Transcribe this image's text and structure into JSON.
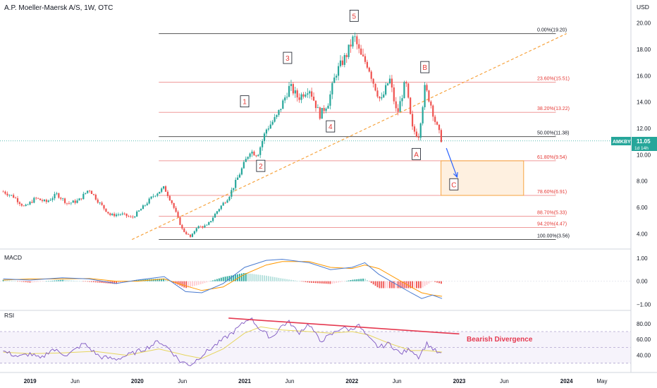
{
  "header": {
    "title": "A.P. Moeller-Maersk A/S, 1W, OTC",
    "currency": "USD",
    "ticker": "AMKBY",
    "last_price": "11.05",
    "countdown": "1d 14h"
  },
  "colors": {
    "up": "#26a69a",
    "down": "#ef5350",
    "fib_line": "#ef9a9a",
    "fib_text": "#e53935",
    "trendline": "#f7a440",
    "wave_label": "#e53935",
    "macd_line": "#4a7bd0",
    "signal_line": "#ff9800",
    "rsi_line": "#7e57c2",
    "rsi_ma": "#e6d55e",
    "divergence": "#e53950",
    "projection_arrow": "#2962ff",
    "target_box": "#f7a440"
  },
  "chart_data": [
    {
      "type": "candlestick",
      "title": "A.P. Moeller-Maersk A/S, 1W, OTC",
      "ylabel": "USD",
      "ylim": [
        3.0,
        21.0
      ],
      "x_ticks": [
        "2019",
        "Jun",
        "2020",
        "Jun",
        "2021",
        "Jun",
        "2022",
        "Jun",
        "2023",
        "Jun",
        "2024",
        "May"
      ],
      "y_ticks": [
        4.0,
        6.0,
        8.0,
        10.0,
        12.0,
        14.0,
        16.0,
        18.0,
        20.0
      ],
      "price_path": [
        [
          2018.75,
          7.2
        ],
        [
          2018.85,
          6.8
        ],
        [
          2018.95,
          6.0
        ],
        [
          2019.05,
          6.7
        ],
        [
          2019.15,
          6.4
        ],
        [
          2019.25,
          7.0
        ],
        [
          2019.35,
          6.3
        ],
        [
          2019.45,
          6.5
        ],
        [
          2019.55,
          7.4
        ],
        [
          2019.65,
          6.3
        ],
        [
          2019.75,
          5.4
        ],
        [
          2019.85,
          5.5
        ],
        [
          2019.95,
          5.2
        ],
        [
          2020.05,
          6.0
        ],
        [
          2020.15,
          6.9
        ],
        [
          2020.25,
          7.5
        ],
        [
          2020.32,
          6.4
        ],
        [
          2020.42,
          4.3
        ],
        [
          2020.5,
          3.7
        ],
        [
          2020.55,
          4.5
        ],
        [
          2020.65,
          4.6
        ],
        [
          2020.75,
          5.8
        ],
        [
          2020.85,
          6.8
        ],
        [
          2020.95,
          8.5
        ],
        [
          2021.05,
          10.3
        ],
        [
          2021.12,
          10.0
        ],
        [
          2021.2,
          11.9
        ],
        [
          2021.3,
          12.9
        ],
        [
          2021.42,
          15.2
        ],
        [
          2021.5,
          14.3
        ],
        [
          2021.6,
          15.1
        ],
        [
          2021.7,
          13.0
        ],
        [
          2021.78,
          14.0
        ],
        [
          2021.85,
          16.2
        ],
        [
          2021.95,
          17.6
        ],
        [
          2022.02,
          19.0
        ],
        [
          2022.08,
          17.5
        ],
        [
          2022.15,
          16.8
        ],
        [
          2022.2,
          15.5
        ],
        [
          2022.27,
          14.0
        ],
        [
          2022.35,
          15.8
        ],
        [
          2022.42,
          13.0
        ],
        [
          2022.5,
          15.6
        ],
        [
          2022.56,
          12.0
        ],
        [
          2022.62,
          11.4
        ],
        [
          2022.68,
          15.1
        ],
        [
          2022.73,
          14.0
        ],
        [
          2022.78,
          12.4
        ],
        [
          2022.84,
          11.0
        ]
      ],
      "fibonacci": {
        "start": 2020.2,
        "end": 2023.9,
        "levels": [
          {
            "label": "0.00%(19.20)",
            "value": 19.2,
            "emphasis": true
          },
          {
            "label": "23.60%(15.51)",
            "value": 15.51,
            "emphasis": false
          },
          {
            "label": "38.20%(13.22)",
            "value": 13.22,
            "emphasis": false
          },
          {
            "label": "50.00%(11.38)",
            "value": 11.38,
            "emphasis": true
          },
          {
            "label": "61.80%(9.54)",
            "value": 9.54,
            "emphasis": false
          },
          {
            "label": "78.60%(6.91)",
            "value": 6.91,
            "emphasis": false
          },
          {
            "label": "88.70%(5.33)",
            "value": 5.33,
            "emphasis": false
          },
          {
            "label": "94.20%(4.47)",
            "value": 4.47,
            "emphasis": false
          },
          {
            "label": "100.00%(3.56)",
            "value": 3.56,
            "emphasis": true
          }
        ]
      },
      "trendline": {
        "from": [
          2019.95,
          3.56
        ],
        "to": [
          2024.0,
          19.2
        ],
        "style": "dashed"
      },
      "wave_labels": [
        {
          "text": "1",
          "x": 2021.0,
          "y": 14.0
        },
        {
          "text": "2",
          "x": 2021.15,
          "y": 9.1
        },
        {
          "text": "3",
          "x": 2021.4,
          "y": 17.3
        },
        {
          "text": "4",
          "x": 2021.8,
          "y": 12.1
        },
        {
          "text": "5",
          "x": 2022.02,
          "y": 20.5
        },
        {
          "text": "A",
          "x": 2022.6,
          "y": 10.0
        },
        {
          "text": "B",
          "x": 2022.68,
          "y": 16.6
        },
        {
          "text": "C",
          "x": 2022.95,
          "y": 7.7
        }
      ],
      "projection_arrow": {
        "from": [
          2022.88,
          10.5
        ],
        "to": [
          2022.98,
          8.3
        ]
      },
      "target_box": {
        "x0": 2022.83,
        "x1": 2023.6,
        "y0": 6.91,
        "y1": 9.54
      },
      "last_price": 11.05
    },
    {
      "type": "line",
      "title": "MACD",
      "ylim": [
        -1.2,
        1.3
      ],
      "y_ticks": [
        1.0,
        0.0,
        -1.0
      ],
      "y_tick_labels": [
        "1.00",
        "0.00",
        "−1.00"
      ],
      "series": [
        {
          "name": "MACD",
          "role": "macd",
          "points": [
            [
              2018.75,
              0.1
            ],
            [
              2019.0,
              0.05
            ],
            [
              2019.3,
              0.15
            ],
            [
              2019.55,
              0.1
            ],
            [
              2019.8,
              -0.1
            ],
            [
              2020.0,
              0.05
            ],
            [
              2020.25,
              0.2
            ],
            [
              2020.45,
              -0.45
            ],
            [
              2020.6,
              -0.5
            ],
            [
              2020.8,
              -0.1
            ],
            [
              2021.0,
              0.6
            ],
            [
              2021.2,
              0.9
            ],
            [
              2021.35,
              0.95
            ],
            [
              2021.6,
              0.8
            ],
            [
              2021.8,
              0.5
            ],
            [
              2022.0,
              0.6
            ],
            [
              2022.12,
              0.8
            ],
            [
              2022.25,
              0.3
            ],
            [
              2022.4,
              -0.1
            ],
            [
              2022.55,
              -0.5
            ],
            [
              2022.65,
              -0.75
            ],
            [
              2022.75,
              -0.6
            ],
            [
              2022.84,
              -0.75
            ]
          ]
        },
        {
          "name": "Signal",
          "role": "signal",
          "points": [
            [
              2018.75,
              0.05
            ],
            [
              2019.0,
              0.1
            ],
            [
              2019.3,
              0.1
            ],
            [
              2019.55,
              0.12
            ],
            [
              2019.8,
              0.0
            ],
            [
              2020.0,
              0.0
            ],
            [
              2020.25,
              0.1
            ],
            [
              2020.45,
              -0.2
            ],
            [
              2020.6,
              -0.4
            ],
            [
              2020.8,
              -0.25
            ],
            [
              2021.0,
              0.3
            ],
            [
              2021.2,
              0.7
            ],
            [
              2021.35,
              0.85
            ],
            [
              2021.6,
              0.85
            ],
            [
              2021.8,
              0.6
            ],
            [
              2022.0,
              0.55
            ],
            [
              2022.12,
              0.7
            ],
            [
              2022.25,
              0.55
            ],
            [
              2022.4,
              0.15
            ],
            [
              2022.55,
              -0.25
            ],
            [
              2022.65,
              -0.5
            ],
            [
              2022.75,
              -0.6
            ],
            [
              2022.84,
              -0.65
            ]
          ]
        }
      ]
    },
    {
      "type": "line",
      "title": "RSI",
      "ylim": [
        20,
        95
      ],
      "y_ticks": [
        80.0,
        60.0,
        40.0
      ],
      "bands": [
        30,
        50,
        70
      ],
      "series": [
        {
          "name": "RSI",
          "role": "rsi",
          "points": [
            [
              2018.75,
              45
            ],
            [
              2018.9,
              38
            ],
            [
              2019.0,
              42
            ],
            [
              2019.1,
              35
            ],
            [
              2019.2,
              48
            ],
            [
              2019.35,
              40
            ],
            [
              2019.5,
              55
            ],
            [
              2019.65,
              38
            ],
            [
              2019.8,
              35
            ],
            [
              2019.95,
              42
            ],
            [
              2020.1,
              50
            ],
            [
              2020.2,
              58
            ],
            [
              2020.3,
              48
            ],
            [
              2020.4,
              32
            ],
            [
              2020.5,
              28
            ],
            [
              2020.6,
              40
            ],
            [
              2020.75,
              55
            ],
            [
              2020.9,
              70
            ],
            [
              2021.0,
              82
            ],
            [
              2021.05,
              88
            ],
            [
              2021.15,
              72
            ],
            [
              2021.25,
              62
            ],
            [
              2021.35,
              78
            ],
            [
              2021.42,
              82
            ],
            [
              2021.5,
              68
            ],
            [
              2021.6,
              80
            ],
            [
              2021.7,
              58
            ],
            [
              2021.8,
              65
            ],
            [
              2021.9,
              75
            ],
            [
              2022.0,
              72
            ],
            [
              2022.05,
              80
            ],
            [
              2022.15,
              62
            ],
            [
              2022.25,
              50
            ],
            [
              2022.35,
              55
            ],
            [
              2022.45,
              42
            ],
            [
              2022.55,
              48
            ],
            [
              2022.62,
              38
            ],
            [
              2022.7,
              55
            ],
            [
              2022.78,
              45
            ],
            [
              2022.84,
              40
            ]
          ]
        },
        {
          "name": "RSI MA",
          "role": "rsi_ma",
          "points": [
            [
              2018.75,
              44
            ],
            [
              2019.0,
              42
            ],
            [
              2019.3,
              43
            ],
            [
              2019.6,
              45
            ],
            [
              2019.9,
              40
            ],
            [
              2020.2,
              48
            ],
            [
              2020.45,
              40
            ],
            [
              2020.6,
              36
            ],
            [
              2020.8,
              48
            ],
            [
              2021.0,
              68
            ],
            [
              2021.15,
              76
            ],
            [
              2021.35,
              72
            ],
            [
              2021.6,
              70
            ],
            [
              2021.8,
              68
            ],
            [
              2022.0,
              70
            ],
            [
              2022.15,
              66
            ],
            [
              2022.35,
              55
            ],
            [
              2022.55,
              46
            ],
            [
              2022.7,
              46
            ],
            [
              2022.84,
              44
            ]
          ]
        }
      ],
      "divergence": {
        "label": "Bearish Divergence",
        "from": [
          2020.85,
          87
        ],
        "to": [
          2023.0,
          67
        ]
      }
    }
  ]
}
